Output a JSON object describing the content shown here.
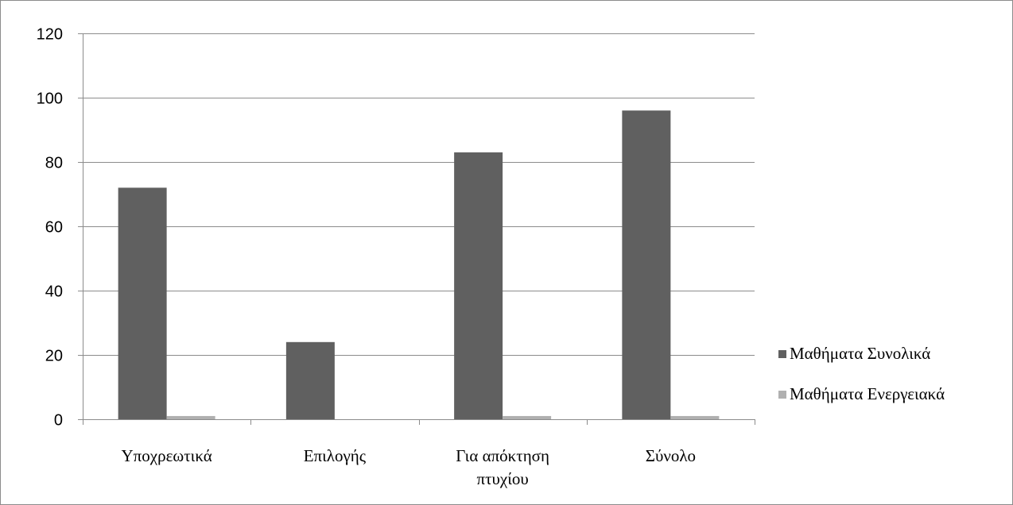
{
  "chart_data": {
    "type": "bar",
    "categories": [
      [
        "Υποχρεωτικά"
      ],
      [
        "Επιλογής"
      ],
      [
        "Για απόκτηση",
        "πτυχίου"
      ],
      [
        "Σύνολο"
      ]
    ],
    "series": [
      {
        "name": "Μαθήματα Συνολικά",
        "values": [
          72,
          24,
          83,
          96
        ],
        "color": "#606060"
      },
      {
        "name": "Μαθήματα Ενεργειακά",
        "values": [
          1,
          0,
          1,
          1
        ],
        "color": "#b0b0b0"
      }
    ],
    "title": "",
    "xlabel": "",
    "ylabel": "",
    "ylim": [
      0,
      120
    ],
    "yticks": [
      0,
      20,
      40,
      60,
      80,
      100,
      120
    ],
    "grid": true,
    "legend_position": "right",
    "colors": {
      "gridline": "#8c8c8c",
      "axis": "#8c8c8c",
      "frame": "#8c8c8c"
    }
  }
}
